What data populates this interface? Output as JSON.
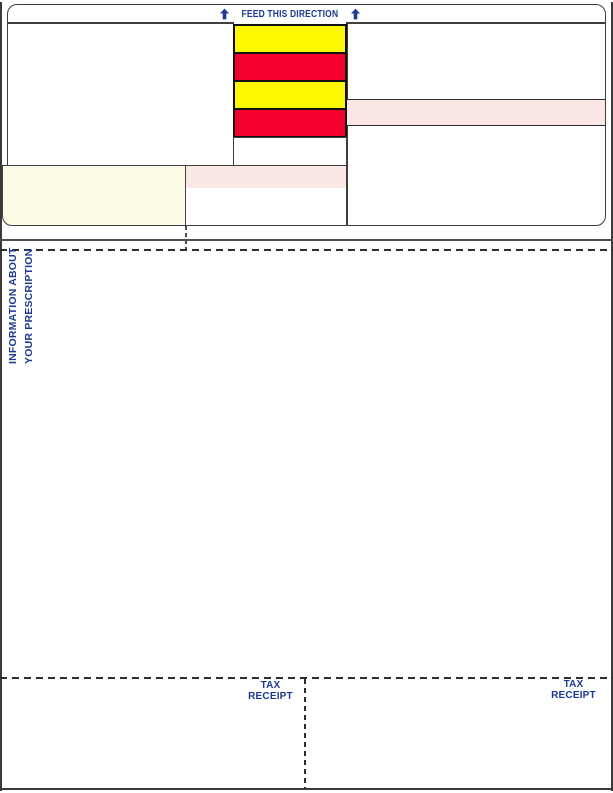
{
  "feed_banner": {
    "label": "FEED THIS DIRECTION"
  },
  "prescription_info_stub": {
    "line1": "INFORMATION ABOUT",
    "line2": "YOUR PRESCRIPTION"
  },
  "tax_receipts": [
    {
      "line1": "TAX",
      "line2": "RECEIPT"
    },
    {
      "line1": "TAX",
      "line2": "RECEIPT"
    }
  ],
  "calibration_stripes": [
    "yellow",
    "red",
    "yellow",
    "red"
  ],
  "colors": {
    "accent_blue": "#1c3a92",
    "stripe_yellow": "#fdf800",
    "stripe_red": "#f4012f",
    "pink_zone": "#fbe7e4",
    "cream_zone": "#fdfce6",
    "line_dark": "#3a3a3a"
  }
}
